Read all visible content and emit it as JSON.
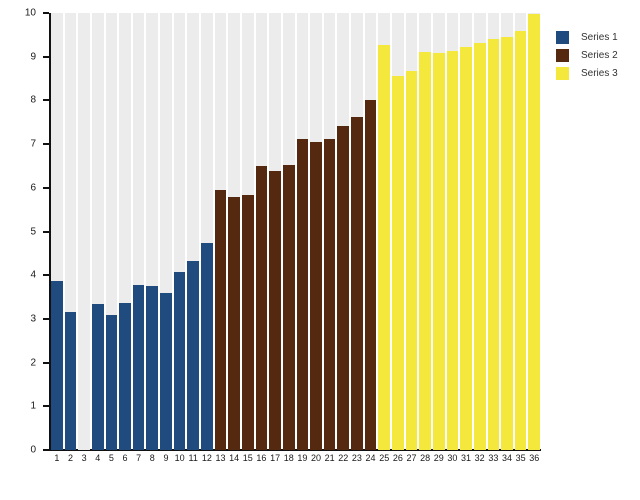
{
  "chart_data": {
    "type": "bar",
    "title": "",
    "xlabel": "",
    "ylabel": "",
    "ylim": [
      0,
      10
    ],
    "yticks": [
      0,
      1,
      2,
      3,
      4,
      5,
      6,
      7,
      8,
      9,
      10
    ],
    "grid": false,
    "legend_position": "right",
    "background_bar_color": "#ececec",
    "axis_color": "#111111",
    "categories": [
      "1",
      "2",
      "3",
      "4",
      "5",
      "6",
      "7",
      "8",
      "9",
      "10",
      "11",
      "12",
      "13",
      "14",
      "15",
      "16",
      "17",
      "18",
      "19",
      "20",
      "21",
      "22",
      "23",
      "24",
      "25",
      "26",
      "27",
      "28",
      "29",
      "30",
      "31",
      "32",
      "33",
      "34",
      "35",
      "36"
    ],
    "series": [
      {
        "name": "Series 1",
        "color": "#1f4b7e",
        "categories": [
          "1",
          "2",
          "3",
          "4",
          "5",
          "6",
          "7",
          "8",
          "9",
          "10",
          "11",
          "12"
        ],
        "values": [
          3.87,
          3.15,
          0,
          3.33,
          3.1,
          3.36,
          3.78,
          3.76,
          3.59,
          4.07,
          4.33,
          4.74
        ]
      },
      {
        "name": "Series 2",
        "color": "#54290f",
        "categories": [
          "13",
          "14",
          "15",
          "16",
          "17",
          "18",
          "19",
          "20",
          "21",
          "22",
          "23",
          "24"
        ],
        "values": [
          5.95,
          5.79,
          5.83,
          6.5,
          6.39,
          6.52,
          7.11,
          7.05,
          7.11,
          7.41,
          7.62,
          8.0
        ]
      },
      {
        "name": "Series 3",
        "color": "#f4e83c",
        "categories": [
          "25",
          "26",
          "27",
          "28",
          "29",
          "30",
          "31",
          "32",
          "33",
          "34",
          "35",
          "36"
        ],
        "values": [
          9.27,
          8.56,
          8.68,
          9.11,
          9.09,
          9.14,
          9.22,
          9.32,
          9.4,
          9.45,
          9.59,
          9.97
        ]
      }
    ]
  }
}
